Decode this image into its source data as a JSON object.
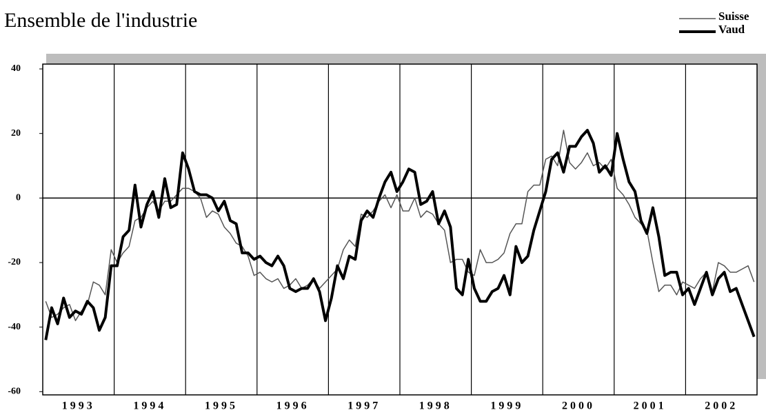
{
  "chart_data": {
    "type": "line",
    "title": "Ensemble de l'industrie",
    "categories": [
      null,
      null,
      null,
      null,
      null,
      null,
      "1993",
      null,
      null,
      null,
      null,
      null,
      null,
      null,
      null,
      null,
      null,
      null,
      "1994",
      null,
      null,
      null,
      null,
      null,
      null,
      null,
      null,
      null,
      null,
      null,
      "1995",
      null,
      null,
      null,
      null,
      null,
      null,
      null,
      null,
      null,
      null,
      null,
      "1996",
      null,
      null,
      null,
      null,
      null,
      null,
      null,
      null,
      null,
      null,
      null,
      "1997",
      null,
      null,
      null,
      null,
      null,
      null,
      null,
      null,
      null,
      null,
      null,
      "1998",
      null,
      null,
      null,
      null,
      null,
      null,
      null,
      null,
      null,
      null,
      null,
      "1999",
      null,
      null,
      null,
      null,
      null,
      null,
      null,
      null,
      null,
      null,
      null,
      "2000",
      null,
      null,
      null,
      null,
      null,
      null,
      null,
      null,
      null,
      null,
      null,
      "2001",
      null,
      null,
      null,
      null,
      null,
      null,
      null,
      null,
      null,
      null,
      null,
      "2002",
      null,
      null,
      null,
      null,
      null
    ],
    "series": [
      {
        "name": "Suisse",
        "color": "#555555",
        "line_width": 1.5,
        "values": [
          -32,
          -37,
          -36,
          -34,
          -33,
          -38,
          -35,
          -33,
          -26,
          -27,
          -30,
          -16,
          -20,
          -17,
          -15,
          -7,
          -6,
          -3,
          -1,
          -4,
          -1,
          -1,
          1,
          3,
          3,
          2,
          0,
          -6,
          -4,
          -5,
          -9,
          -11,
          -14,
          -15,
          -18,
          -24,
          -23,
          -25,
          -26,
          -25,
          -28,
          -27,
          -25,
          -28,
          -27,
          -25,
          -28,
          -26,
          -24,
          -22,
          -16,
          -13,
          -15,
          -5,
          -6,
          -4,
          -1,
          1,
          -3,
          1,
          -4,
          -4,
          0,
          -6,
          -4,
          -5,
          -8,
          -10,
          -20,
          -19,
          -19,
          -23,
          -24,
          -16,
          -20,
          -20,
          -19,
          -17,
          -11,
          -8,
          -8,
          2,
          4,
          4,
          12,
          13,
          10,
          21,
          11,
          9,
          11,
          14,
          10,
          11,
          9,
          12,
          3,
          1,
          -2,
          -6,
          -8,
          -10,
          -20,
          -29,
          -27,
          -27,
          -30,
          -26,
          -27,
          -28,
          -25,
          -23,
          -29,
          -20,
          -21,
          -23,
          -23,
          -22,
          -21,
          -26
        ]
      },
      {
        "name": "Vaud",
        "color": "#000000",
        "line_width": 4,
        "values": [
          -44,
          -34,
          -39,
          -31,
          -37,
          -35,
          -36,
          -32,
          -34,
          -41,
          -37,
          -21,
          -21,
          -12,
          -10,
          4,
          -9,
          -2,
          2,
          -6,
          6,
          -3,
          -2,
          14,
          9,
          2,
          1,
          1,
          0,
          -4,
          -1,
          -7,
          -8,
          -17,
          -17,
          -19,
          -18,
          -20,
          -21,
          -18,
          -21,
          -28,
          -29,
          -28,
          -28,
          -25,
          -29,
          -38,
          -31,
          -21,
          -25,
          -18,
          -19,
          -7,
          -4,
          -6,
          0,
          5,
          8,
          2,
          5,
          9,
          8,
          -2,
          -1,
          2,
          -8,
          -4,
          -9,
          -28,
          -30,
          -19,
          -28,
          -32,
          -32,
          -29,
          -28,
          -24,
          -30,
          -15,
          -20,
          -18,
          -10,
          -4,
          2,
          12,
          14,
          8,
          16,
          16,
          19,
          21,
          17,
          8,
          10,
          7,
          20,
          12,
          5,
          2,
          -7,
          -11,
          -3,
          -12,
          -24,
          -23,
          -23,
          -30,
          -28,
          -33,
          -28,
          -23,
          -30,
          -25,
          -23,
          -29,
          -28,
          -33,
          -38,
          -43
        ]
      }
    ],
    "ylim": [
      -61,
      41.5
    ],
    "yticks": [
      -60,
      -40,
      -20,
      0,
      20,
      40
    ],
    "legend": "top-right"
  }
}
